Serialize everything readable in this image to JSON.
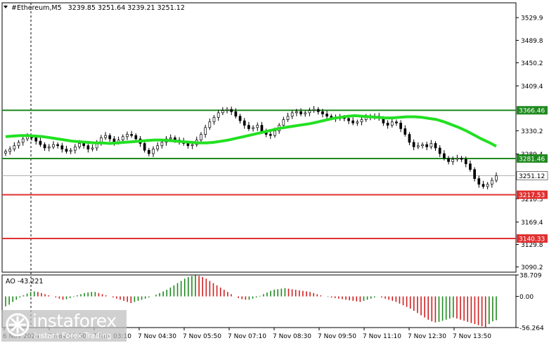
{
  "chart_data": {
    "type": "candlestick",
    "header": {
      "symbol": "#Ethereum,M5",
      "ohlc": "3239.85 3251.64 3239.21 3251.12"
    },
    "price_axis": {
      "ylim": [
        3081,
        3556
      ],
      "ticks": [
        3529.9,
        3489.8,
        3450.2,
        3409.4,
        3330.2,
        3289.4,
        3210.3,
        3169.4,
        3129.8,
        3090.2
      ]
    },
    "time_axis": {
      "labels": [
        "6 Nov 2024",
        "7 Nov 01:50",
        "7 Nov 03:10",
        "7 Nov 04:30",
        "7 Nov 05:50",
        "7 Nov 07:10",
        "7 Nov 08:30",
        "7 Nov 09:50",
        "7 Nov 11:10",
        "7 Nov 12:30",
        "7 Nov 13:50"
      ]
    },
    "levels": [
      {
        "value": 3366.46,
        "label": "3366.46",
        "color": "#1f8a1f",
        "label_bg": "#1f8a1f"
      },
      {
        "value": 3281.46,
        "label": "3281.46",
        "color": "#1f8a1f",
        "label_bg": "#1f8a1f"
      },
      {
        "value": 3217.53,
        "label": "3217.53",
        "color": "#e03030",
        "label_bg": "#e03030"
      },
      {
        "value": 3140.33,
        "label": "3140.33",
        "color": "#e03030",
        "label_bg": "#e03030"
      }
    ],
    "current_price": {
      "value": 3251.12,
      "label": "3251.12"
    },
    "close_series": [
      3294,
      3298,
      3304,
      3310,
      3316,
      3320,
      3318,
      3312,
      3306,
      3300,
      3302,
      3306,
      3304,
      3298,
      3294,
      3296,
      3302,
      3308,
      3304,
      3298,
      3300,
      3310,
      3318,
      3322,
      3316,
      3310,
      3314,
      3320,
      3324,
      3322,
      3316,
      3308,
      3296,
      3290,
      3298,
      3304,
      3310,
      3316,
      3318,
      3314,
      3312,
      3308,
      3304,
      3306,
      3314,
      3324,
      3336,
      3346,
      3354,
      3362,
      3366,
      3368,
      3364,
      3356,
      3348,
      3340,
      3334,
      3336,
      3340,
      3330,
      3324,
      3322,
      3330,
      3340,
      3350,
      3356,
      3362,
      3364,
      3360,
      3362,
      3366,
      3368,
      3364,
      3360,
      3356,
      3354,
      3352,
      3354,
      3352,
      3348,
      3344,
      3346,
      3350,
      3354,
      3356,
      3356,
      3352,
      3344,
      3340,
      3346,
      3344,
      3334,
      3324,
      3310,
      3302,
      3304,
      3306,
      3302,
      3308,
      3300,
      3290,
      3282,
      3276,
      3280,
      3282,
      3280,
      3272,
      3262,
      3246,
      3236,
      3232,
      3236,
      3243,
      3251
    ],
    "ma_series": [
      3320,
      3321,
      3322,
      3322,
      3321,
      3320,
      3318,
      3316,
      3314,
      3312,
      3311,
      3310,
      3309,
      3309,
      3308,
      3309,
      3310,
      3311,
      3312,
      3313,
      3314,
      3314,
      3313,
      3312,
      3311,
      3310,
      3309,
      3309,
      3310,
      3312,
      3314,
      3317,
      3320,
      3323,
      3326,
      3329,
      3332,
      3335,
      3337,
      3339,
      3341,
      3343,
      3346,
      3349,
      3352,
      3354,
      3356,
      3357,
      3356,
      3355,
      3354,
      3353,
      3353,
      3354,
      3355,
      3355,
      3354,
      3352,
      3350,
      3346,
      3341,
      3336,
      3330,
      3323,
      3316,
      3310,
      3303
    ],
    "ao": {
      "label": "AO -43.221",
      "ticks": [
        "38.709",
        "0.00",
        "-56.264"
      ],
      "ylim": [
        -56.264,
        38.709
      ],
      "values": [
        -18,
        -15,
        -10,
        -6,
        -2,
        2,
        5,
        8,
        9,
        8,
        6,
        4,
        2,
        0,
        -2,
        -4,
        -6,
        -5,
        -3,
        -1,
        2,
        4,
        6,
        7,
        8,
        8,
        6,
        4,
        2,
        0,
        -2,
        -4,
        -6,
        -8,
        -10,
        -12,
        -10,
        -8,
        -6,
        -4,
        -2,
        0,
        3,
        6,
        9,
        12,
        16,
        20,
        24,
        28,
        32,
        35,
        37,
        38,
        37,
        35,
        32,
        28,
        24,
        20,
        16,
        12,
        8,
        4,
        0,
        -3,
        -5,
        -6,
        -6,
        -4,
        -2,
        1,
        4,
        7,
        10,
        12,
        13,
        14,
        15,
        14,
        13,
        12,
        11,
        10,
        9,
        8,
        6,
        4,
        2,
        0,
        -1,
        -2,
        -3,
        -4,
        -5,
        -6,
        -7,
        -8,
        -9,
        -10,
        -8,
        -6,
        -4,
        -2,
        0,
        -2,
        -4,
        -6,
        -8,
        -10,
        -13,
        -16,
        -19,
        -22,
        -26,
        -30,
        -34,
        -38,
        -42,
        -45,
        -47,
        -46,
        -44,
        -42,
        -40,
        -38,
        -40,
        -42,
        -44,
        -46,
        -48,
        -50,
        -52,
        -54,
        -56,
        -50,
        -45,
        -43
      ]
    },
    "legend": "none",
    "grid": false
  },
  "watermark": {
    "brand": "instaforex",
    "tagline": "Instant Forex Trading"
  },
  "colors": {
    "bull": "#1f8a1f",
    "bear": "#d02020",
    "ma": "#22e022",
    "candle": "#000000"
  }
}
